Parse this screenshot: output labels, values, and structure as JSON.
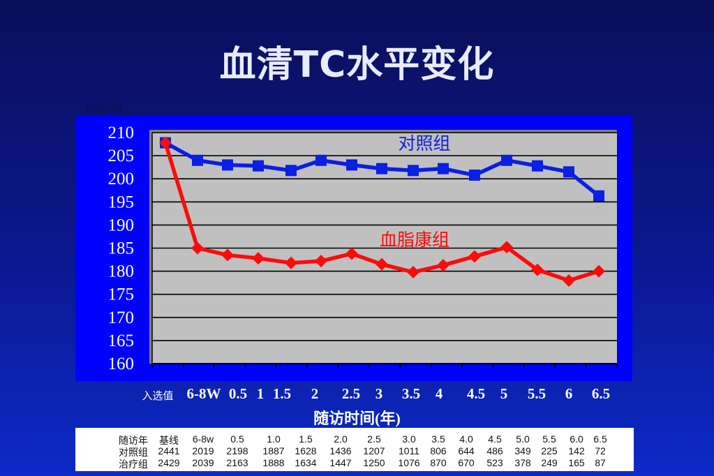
{
  "title": "血清TC水平变化",
  "colors": {
    "control": "#0a1ee6",
    "treatment": "#ff0a0a",
    "plot_bg": "#c0c0c0",
    "panel": "#0000ff"
  },
  "chart_data": {
    "type": "line",
    "title": "血清TC水平变化",
    "ylabel": "mg/dl",
    "xlabel": "随访时间(年)",
    "ylim": [
      160,
      210
    ],
    "yticks": [
      210,
      205,
      200,
      195,
      190,
      185,
      180,
      175,
      170,
      165,
      160
    ],
    "categories": [
      "入选值",
      "6-8W",
      "0.5",
      "1",
      "1.5",
      "2",
      "2.5",
      "3",
      "3.5",
      "4",
      "4.5",
      "5",
      "5.5",
      "6",
      "6.5"
    ],
    "grid": true,
    "series": [
      {
        "name": "对照组",
        "color": "#0a1ee6",
        "marker": "square",
        "values": [
          207.8,
          204,
          203,
          202.8,
          201.8,
          204,
          203,
          202.2,
          201.8,
          202.2,
          200.8,
          204,
          202.8,
          201.5,
          196.3
        ]
      },
      {
        "name": "血脂康组",
        "color": "#ff0a0a",
        "marker": "diamond",
        "values": [
          207.8,
          185,
          183.5,
          182.8,
          181.8,
          182.2,
          183.8,
          181.5,
          179.8,
          181.3,
          183.2,
          185.2,
          180.3,
          178,
          180
        ]
      }
    ]
  },
  "table": {
    "rows": [
      {
        "label": "随访年",
        "cells": [
          "基线",
          "6-8w",
          "0.5",
          "1.0",
          "1.5",
          "2.0",
          "2.5",
          "3.0",
          "3.5",
          "4.0",
          "4.5",
          "5.0",
          "5.5",
          "6.0",
          "6.5"
        ]
      },
      {
        "label": "对照组",
        "cells": [
          "2441",
          "2019",
          "2198",
          "1887",
          "1628",
          "1436",
          "1207",
          "1011",
          "806",
          "644",
          "486",
          "349",
          "225",
          "142",
          "72"
        ]
      },
      {
        "label": "治疗组",
        "cells": [
          "2429",
          "2039",
          "2163",
          "1888",
          "1634",
          "1447",
          "1250",
          "1076",
          "870",
          "670",
          "523",
          "378",
          "249",
          "165",
          "87"
        ]
      }
    ]
  }
}
